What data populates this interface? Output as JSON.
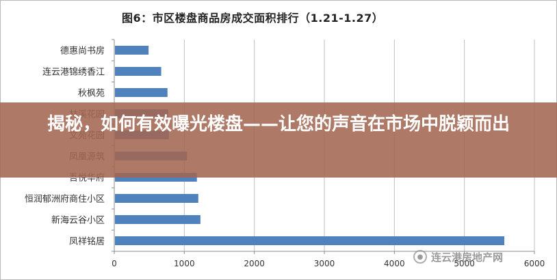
{
  "chart_data": {
    "type": "bar",
    "orientation": "horizontal",
    "title": "图6：市区楼盘商品房成交面积排行（1.21-1.27）",
    "categories": [
      "德惠尚书房",
      "连云港锦绣香江",
      "秋枫苑",
      "林溪花园",
      "文苑花园",
      "凤凰源筑",
      "吾悦华府",
      "恒润郁洲府商住小区",
      "新海云谷小区",
      "凤祥铭居"
    ],
    "values": [
      490,
      670,
      760,
      770,
      780,
      1040,
      1180,
      1200,
      1230,
      5570
    ],
    "xlim": [
      0,
      6000
    ],
    "xticks": [
      0,
      1000,
      2000,
      3000,
      4000,
      5000,
      6000
    ],
    "xlabel": "",
    "ylabel": "",
    "grid": true,
    "bar_color": "#4f81bd"
  },
  "overlay": {
    "title": "揭秘，如何有效曝光楼盘——让您的声音在市场中脱颖而出"
  },
  "watermark": {
    "text": "连云港房地产网",
    "icon": "wechat-icon"
  }
}
